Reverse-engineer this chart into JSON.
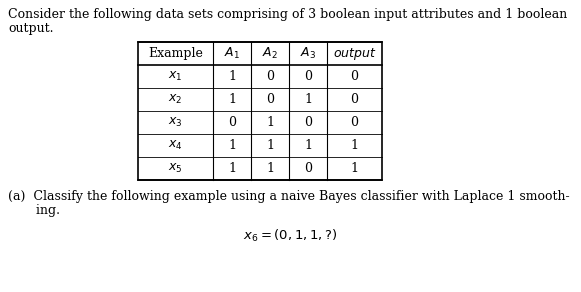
{
  "bg_color": "#ffffff",
  "text_color": "#000000",
  "title_line1": "Consider the following data sets comprising of 3 boolean input attributes and 1 boolean",
  "title_line2": "output.",
  "col_headers": [
    "Example",
    "$A_1$",
    "$A_2$",
    "$A_3$",
    "$\\mathit{output}$"
  ],
  "row_labels": [
    "$x_1$",
    "$x_2$",
    "$x_3$",
    "$x_4$",
    "$x_5$"
  ],
  "table_data": [
    [
      "1",
      "0",
      "0",
      "0"
    ],
    [
      "1",
      "0",
      "1",
      "0"
    ],
    [
      "0",
      "1",
      "0",
      "0"
    ],
    [
      "1",
      "1",
      "1",
      "1"
    ],
    [
      "1",
      "1",
      "0",
      "1"
    ]
  ],
  "part_a_line1": "(a)  Classify the following example using a naive Bayes classifier with Laplace 1 smooth-",
  "part_a_line2": "       ing.",
  "formula": "$x_6 = (0, 1, 1, ?)$",
  "fs": 9.0,
  "fs_formula": 9.5
}
